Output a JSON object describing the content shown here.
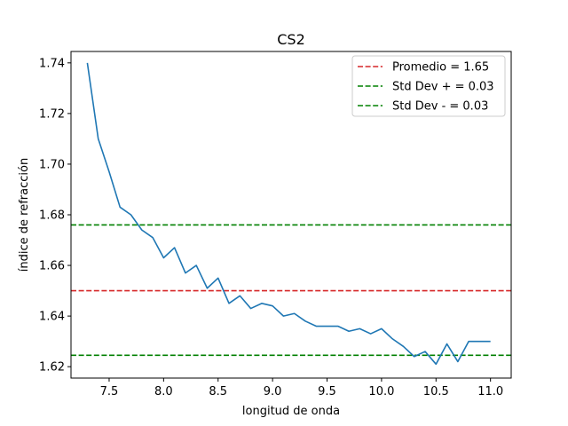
{
  "chart_data": {
    "type": "line",
    "title": "CS2",
    "xlabel": "longitud de onda",
    "ylabel": "índice de refracción",
    "xlim": [
      7.15,
      11.19
    ],
    "ylim": [
      1.6155,
      1.7445
    ],
    "x_ticks": [
      7.5,
      8.0,
      8.5,
      9.0,
      9.5,
      10.0,
      10.5,
      11.0
    ],
    "x_tick_labels": [
      "7.5",
      "8.0",
      "8.5",
      "9.0",
      "9.5",
      "10.0",
      "10.5",
      "11.0"
    ],
    "y_ticks": [
      1.62,
      1.64,
      1.66,
      1.68,
      1.7,
      1.72,
      1.74
    ],
    "y_tick_labels": [
      "1.62",
      "1.64",
      "1.66",
      "1.68",
      "1.70",
      "1.72",
      "1.74"
    ],
    "grid": false,
    "legend_position": "top-right",
    "series": [
      {
        "color": "#1f77b4",
        "style": "solid",
        "x": [
          7.3,
          7.4,
          7.5,
          7.6,
          7.7,
          7.8,
          7.9,
          8.0,
          8.1,
          8.2,
          8.3,
          8.4,
          8.5,
          8.6,
          8.7,
          8.8,
          8.9,
          9.0,
          9.1,
          9.2,
          9.3,
          9.4,
          9.5,
          9.6,
          9.7,
          9.8,
          9.9,
          10.0,
          10.1,
          10.2,
          10.3,
          10.4,
          10.5,
          10.6,
          10.7,
          10.8,
          10.9,
          11.0
        ],
        "y": [
          1.74,
          1.71,
          1.697,
          1.683,
          1.68,
          1.674,
          1.671,
          1.663,
          1.667,
          1.657,
          1.66,
          1.651,
          1.655,
          1.645,
          1.648,
          1.643,
          1.645,
          1.644,
          1.64,
          1.641,
          1.638,
          1.636,
          1.636,
          1.636,
          1.634,
          1.635,
          1.633,
          1.635,
          1.631,
          1.628,
          1.624,
          1.626,
          1.621,
          1.629,
          1.622,
          1.63,
          1.63,
          1.63
        ]
      }
    ],
    "hlines": [
      {
        "name": "Promedio = 1.65",
        "y": 1.65,
        "color": "#d62728",
        "style": "dashed"
      },
      {
        "name": "Std Dev + = 0.03",
        "y": 1.676,
        "color": "#008000",
        "style": "dashed"
      },
      {
        "name": "Std Dev - = 0.03",
        "y": 1.6245,
        "color": "#008000",
        "style": "dashed"
      }
    ]
  }
}
